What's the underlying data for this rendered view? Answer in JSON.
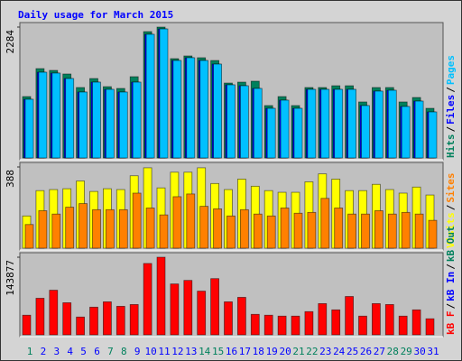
{
  "chart_data": [
    {
      "type": "bar",
      "title": "Daily usage for March 2015",
      "ylim": [
        0,
        2284
      ],
      "yticks": [
        2284
      ],
      "legend_separator": "/",
      "series": [
        {
          "name": "Hits",
          "color": "#00805c",
          "values": [
            1071,
            1559,
            1528,
            1465,
            1229,
            1386,
            1244,
            1213,
            1418,
            2205,
            2284,
            1733,
            1780,
            1749,
            1701,
            1307,
            1323,
            1339,
            914,
            1071,
            914,
            1229,
            1229,
            1260,
            1260,
            977,
            1229,
            1229,
            977,
            1055,
            866
          ]
        },
        {
          "name": "Files",
          "color": "#0000ff",
          "values": [
            1024,
            1496,
            1481,
            1386,
            1150,
            1323,
            1197,
            1150,
            1323,
            2158,
            2252,
            1701,
            1749,
            1701,
            1638,
            1276,
            1260,
            1213,
            866,
            1008,
            866,
            1197,
            1197,
            1197,
            1197,
            914,
            1166,
            1181,
            898,
            992,
            803
          ]
        },
        {
          "name": "Pages",
          "color": "#00c0ff",
          "values": [
            1024,
            1496,
            1481,
            1386,
            1150,
            1323,
            1197,
            1150,
            1323,
            2158,
            2252,
            1701,
            1749,
            1701,
            1638,
            1276,
            1260,
            1213,
            866,
            1008,
            866,
            1197,
            1197,
            1197,
            1197,
            914,
            1166,
            1181,
            898,
            992,
            803
          ]
        }
      ]
    },
    {
      "type": "bar",
      "ylim": [
        0,
        388
      ],
      "yticks": [
        388
      ],
      "legend_separator": "/",
      "series": [
        {
          "name": "Visits",
          "color": "#ffff00",
          "values": [
            154,
            275,
            280,
            284,
            321,
            271,
            284,
            280,
            346,
            384,
            288,
            363,
            363,
            384,
            309,
            280,
            330,
            296,
            275,
            267,
            267,
            317,
            355,
            330,
            275,
            275,
            305,
            280,
            263,
            292,
            254
          ]
        },
        {
          "name": "Sites",
          "color": "#ff8000",
          "values": [
            113,
            179,
            163,
            196,
            213,
            184,
            184,
            184,
            263,
            192,
            159,
            246,
            259,
            200,
            188,
            154,
            184,
            163,
            154,
            192,
            167,
            171,
            238,
            192,
            163,
            163,
            179,
            163,
            171,
            163,
            133
          ]
        }
      ]
    },
    {
      "type": "bar",
      "ylim": [
        0,
        143877
      ],
      "yticks": [
        143877
      ],
      "legend_separator": "/",
      "series": [
        {
          "name": "kB F",
          "color": "#ff0000",
          "values": [
            36383,
            67800,
            82700,
            59500,
            33000,
            51300,
            61200,
            52900,
            56200,
            132300,
            143877,
            94300,
            100900,
            81000,
            104200,
            61200,
            69500,
            38000,
            36400,
            34700,
            34700,
            43000,
            57900,
            46300,
            71100,
            34700,
            57900,
            56200,
            34700,
            46300,
            29800
          ]
        }
      ],
      "extra_legend": [
        {
          "name": "kB In",
          "color": "#0000ff"
        },
        {
          "name": "kB Out",
          "color": "#00805c"
        }
      ],
      "categories": [
        "1",
        "2",
        "3",
        "4",
        "5",
        "6",
        "7",
        "8",
        "9",
        "10",
        "11",
        "12",
        "13",
        "14",
        "15",
        "16",
        "17",
        "18",
        "19",
        "20",
        "21",
        "22",
        "23",
        "24",
        "25",
        "26",
        "27",
        "28",
        "29",
        "30",
        "31"
      ],
      "category_colors": [
        "#00805c",
        "#0000ff",
        "#0000ff",
        "#0000ff",
        "#0000ff",
        "#0000ff",
        "#00805c",
        "#00805c",
        "#0000ff",
        "#0000ff",
        "#0000ff",
        "#0000ff",
        "#0000ff",
        "#00805c",
        "#00805c",
        "#0000ff",
        "#0000ff",
        "#0000ff",
        "#0000ff",
        "#0000ff",
        "#00805c",
        "#00805c",
        "#0000ff",
        "#0000ff",
        "#0000ff",
        "#0000ff",
        "#0000ff",
        "#00805c",
        "#00805c",
        "#0000ff",
        "#0000ff"
      ]
    }
  ]
}
